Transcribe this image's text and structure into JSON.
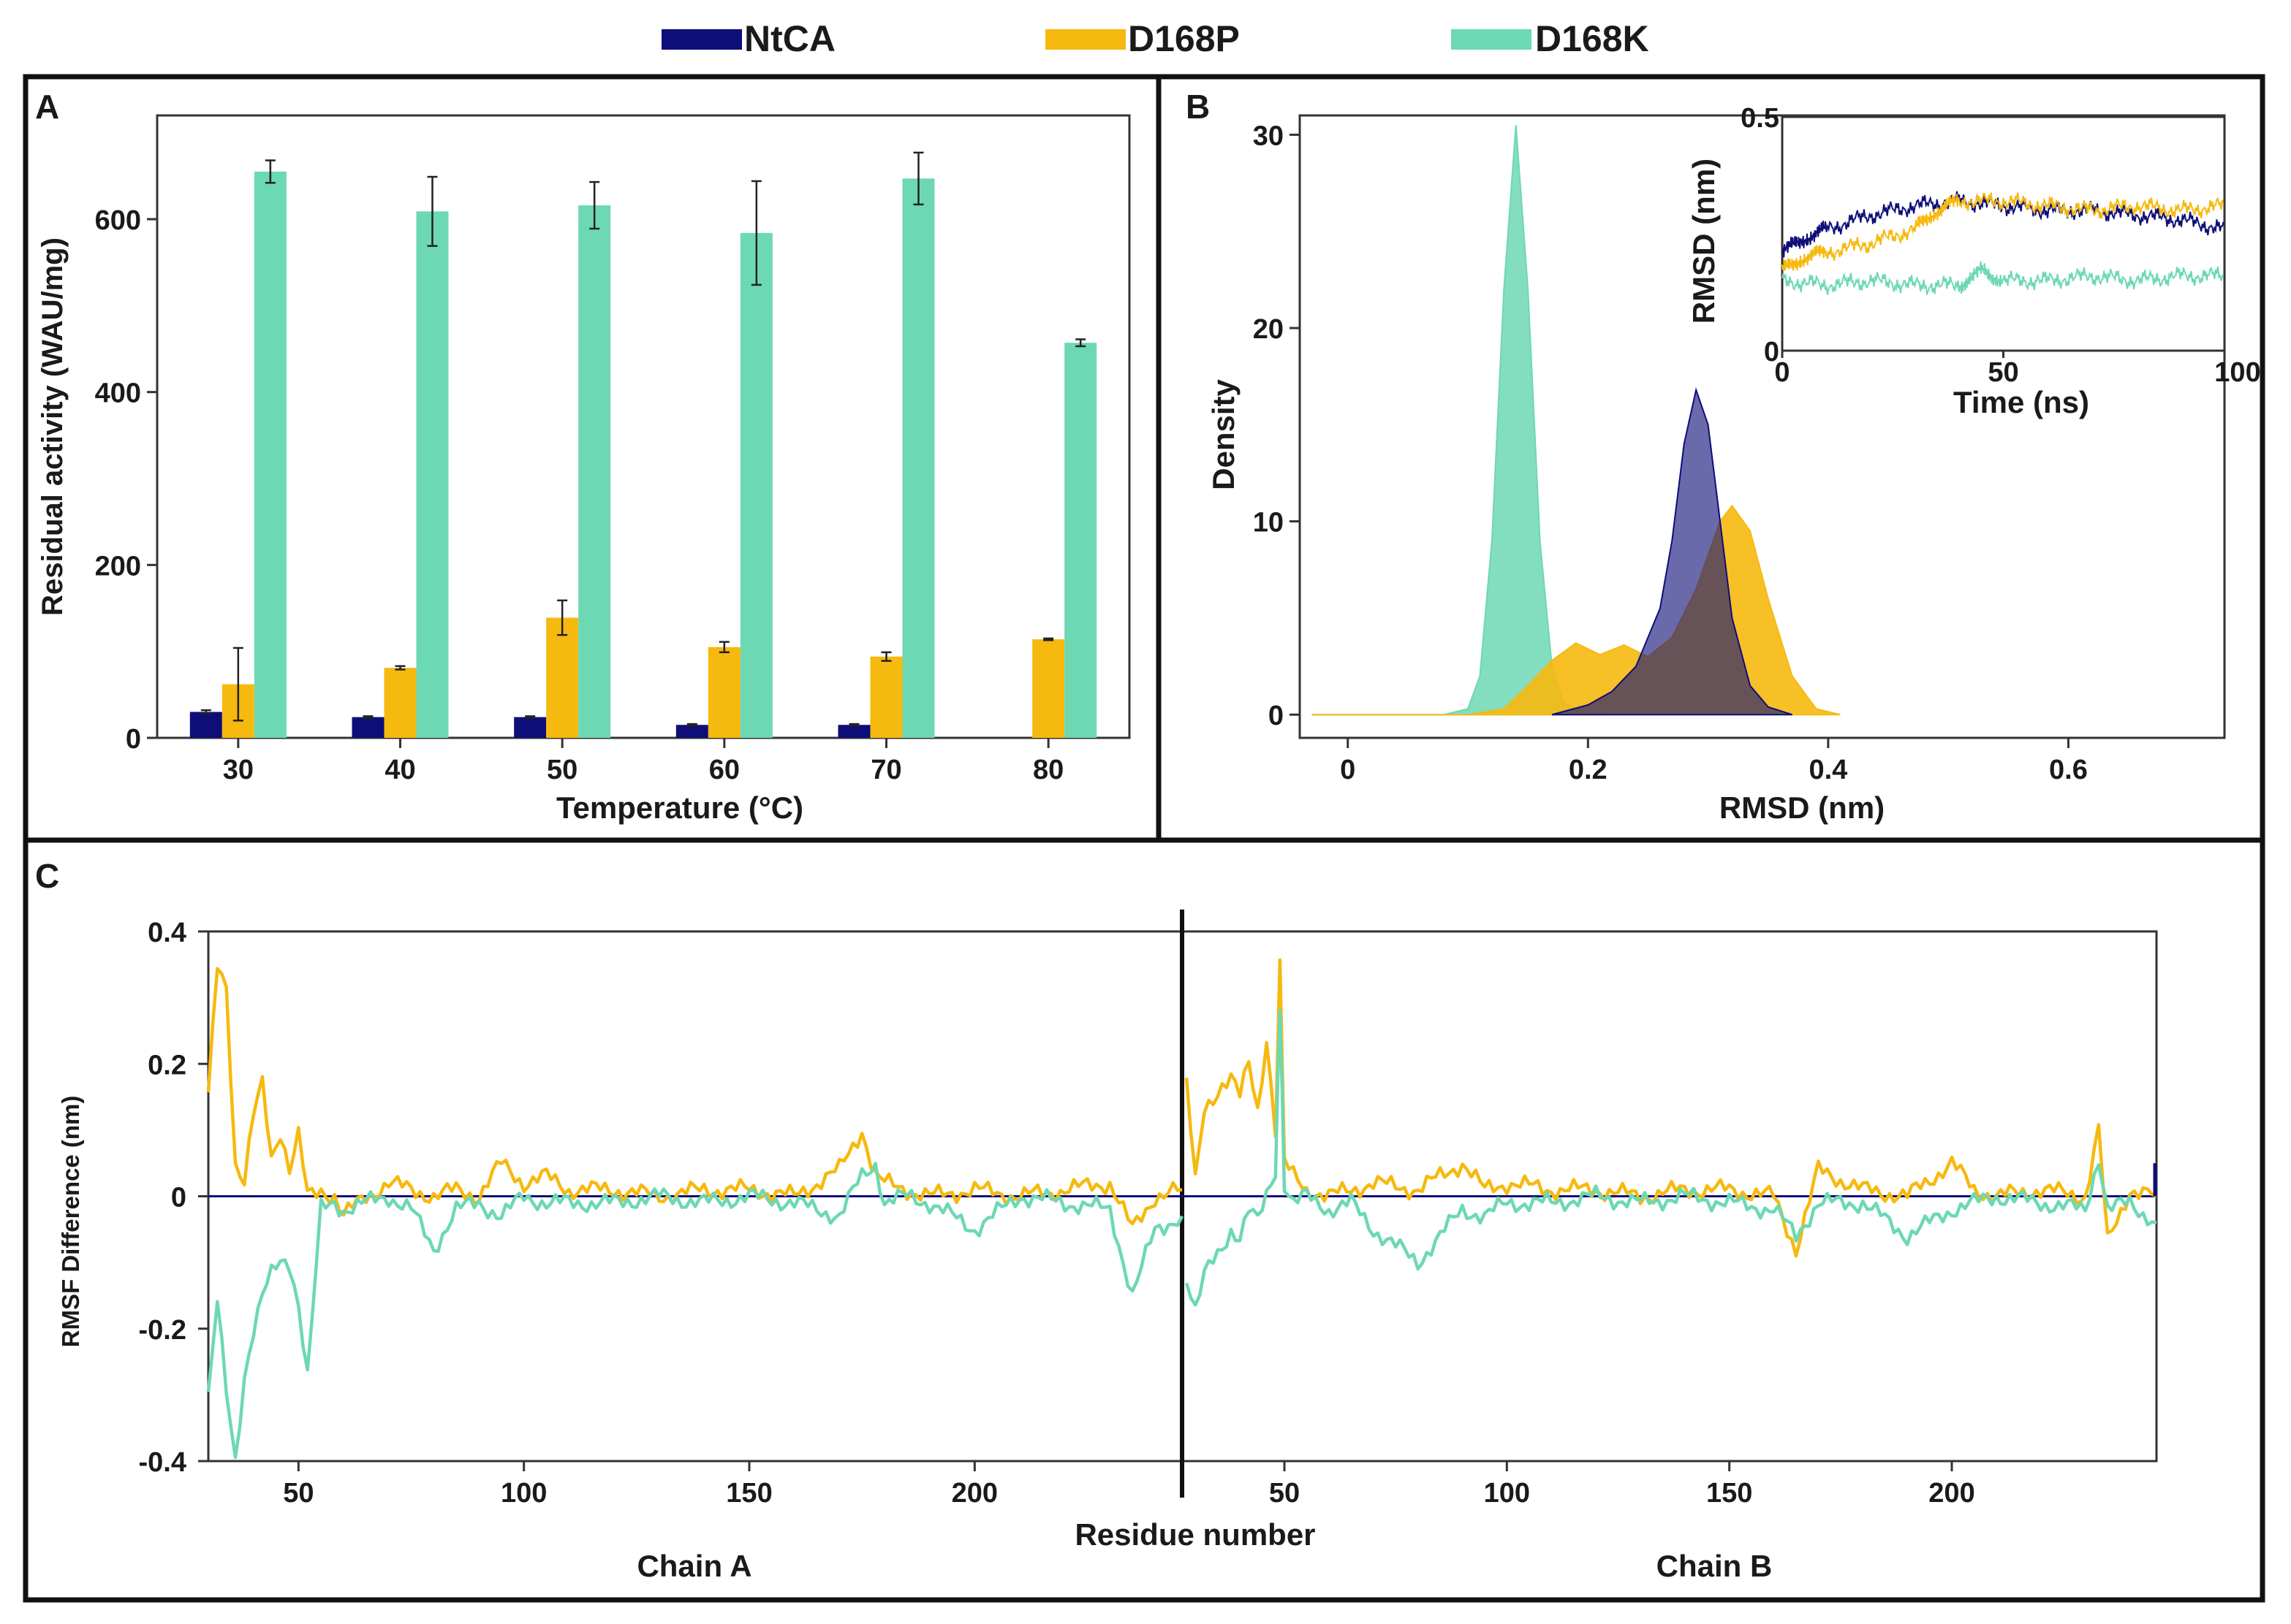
{
  "colors": {
    "NtCA": "#0e0e78",
    "D168P": "#f6b90f",
    "D168K": "#6dd8b4",
    "frame": "#111111",
    "zero_line": "#0e0e78"
  },
  "legend": [
    {
      "name": "NtCA",
      "color_key": "NtCA"
    },
    {
      "name": "D168P",
      "color_key": "D168P"
    },
    {
      "name": "D168K",
      "color_key": "D168K"
    }
  ],
  "chart_data": [
    {
      "panel": "A",
      "type": "bar",
      "xlabel": "Temperature (°C)",
      "ylabel": "Residual activity (WAU/mg)",
      "categories": [
        "30",
        "40",
        "50",
        "60",
        "70",
        "80"
      ],
      "ylim": [
        0,
        720
      ],
      "yticks": [
        0,
        200,
        400,
        600
      ],
      "series": [
        {
          "name": "NtCA",
          "values": [
            30,
            24,
            24,
            15,
            15,
            0
          ],
          "errors": [
            2,
            1,
            1,
            1,
            1,
            0
          ]
        },
        {
          "name": "D168P",
          "values": [
            62,
            81,
            139,
            105,
            94,
            114
          ],
          "errors": [
            42,
            2,
            20,
            6,
            5,
            1
          ]
        },
        {
          "name": "D168K",
          "values": [
            655,
            609,
            616,
            584,
            647,
            457
          ],
          "errors": [
            13,
            40,
            27,
            60,
            30,
            4
          ]
        }
      ]
    },
    {
      "panel": "B",
      "type": "area",
      "xlabel": "RMSD (nm)",
      "ylabel": "Density",
      "xlim": [
        -0.04,
        0.73
      ],
      "ylim": [
        -1.2,
        31
      ],
      "xticks": [
        0,
        0.2,
        0.4,
        0.6
      ],
      "yticks": [
        0,
        10,
        20,
        30
      ],
      "series": [
        {
          "name": "D168K",
          "x": [
            -0.03,
            0.08,
            0.1,
            0.11,
            0.12,
            0.13,
            0.14,
            0.15,
            0.16,
            0.17,
            0.18,
            0.2,
            0.22,
            0.25
          ],
          "values": [
            0,
            0,
            0.3,
            2,
            9,
            22,
            30.5,
            22,
            9,
            2.5,
            0.6,
            0.1,
            0,
            0
          ]
        },
        {
          "name": "D168P",
          "x": [
            -0.03,
            0.1,
            0.13,
            0.15,
            0.17,
            0.19,
            0.21,
            0.23,
            0.25,
            0.27,
            0.29,
            0.31,
            0.32,
            0.335,
            0.35,
            0.37,
            0.39,
            0.41
          ],
          "values": [
            0,
            0,
            0.3,
            1.5,
            2.8,
            3.7,
            3.1,
            3.6,
            3,
            4,
            6.5,
            10,
            10.8,
            9.5,
            6,
            2,
            0.3,
            0
          ]
        },
        {
          "name": "NtCA",
          "x": [
            0.17,
            0.2,
            0.22,
            0.24,
            0.26,
            0.27,
            0.28,
            0.29,
            0.3,
            0.31,
            0.32,
            0.335,
            0.35,
            0.37
          ],
          "values": [
            0,
            0.5,
            1.2,
            2.5,
            5.5,
            9,
            14,
            16.8,
            15,
            10,
            5,
            1.5,
            0.4,
            0
          ]
        }
      ],
      "inset": {
        "type": "line",
        "xlabel": "Time (ns)",
        "ylabel": "RMSD (nm)",
        "xlim": [
          0,
          100
        ],
        "ylim": [
          0,
          0.5
        ],
        "xticks": [
          "0",
          "50",
          "100"
        ],
        "yticks": [
          "0",
          "0.5"
        ],
        "series": [
          {
            "name": "NtCA",
            "x": [
              0,
              5,
              10,
              20,
              30,
              40,
              50,
              60,
              70,
              80,
              90,
              100
            ],
            "values": [
              0.21,
              0.24,
              0.26,
              0.29,
              0.31,
              0.32,
              0.31,
              0.3,
              0.3,
              0.29,
              0.28,
              0.26
            ]
          },
          {
            "name": "D168P",
            "x": [
              0,
              5,
              10,
              20,
              30,
              35,
              40,
              50,
              60,
              70,
              80,
              90,
              100
            ],
            "values": [
              0.17,
              0.2,
              0.21,
              0.23,
              0.26,
              0.3,
              0.32,
              0.32,
              0.31,
              0.3,
              0.31,
              0.3,
              0.31
            ]
          },
          {
            "name": "D168K",
            "x": [
              0,
              10,
              20,
              30,
              40,
              45,
              50,
              60,
              70,
              80,
              90,
              100
            ],
            "values": [
              0.15,
              0.14,
              0.15,
              0.14,
              0.14,
              0.17,
              0.15,
              0.15,
              0.16,
              0.15,
              0.16,
              0.16
            ]
          }
        ]
      }
    },
    {
      "panel": "C",
      "type": "line",
      "xlabel": "Residue number",
      "ylabel": "RMSF Difference (nm)",
      "ylim": [
        -0.4,
        0.4
      ],
      "yticks": [
        "0.4",
        "0.2",
        "0",
        "-0.2",
        "-0.4"
      ],
      "chains": [
        {
          "label": "Chain A",
          "xlim": [
            30,
            246
          ],
          "xticks": [
            50,
            100,
            150,
            200
          ],
          "series": [
            {
              "name": "D168P",
              "x": [
                30,
                32,
                34,
                36,
                38,
                40,
                42,
                44,
                46,
                48,
                50,
                52,
                55,
                58,
                60,
                65,
                70,
                75,
                80,
                85,
                90,
                95,
                100,
                105,
                110,
                120,
                130,
                140,
                150,
                160,
                170,
                175,
                178,
                180,
                185,
                190,
                200,
                210,
                220,
                230,
                235,
                240,
                246
              ],
              "values": [
                0.15,
                0.35,
                0.32,
                0.05,
                0.02,
                0.12,
                0.17,
                0.06,
                0.1,
                0.04,
                0.09,
                0.0,
                0.01,
                0.0,
                -0.03,
                0.0,
                0.02,
                0.01,
                0.0,
                0.01,
                0.0,
                0.05,
                0.02,
                0.03,
                0.01,
                0.01,
                0.0,
                0.01,
                0.01,
                0.0,
                0.04,
                0.1,
                0.03,
                0.02,
                0.01,
                0.0,
                0.01,
                0.0,
                0.01,
                0.02,
                -0.05,
                0.0,
                0.01
              ]
            },
            {
              "name": "D168K",
              "x": [
                30,
                32,
                34,
                36,
                38,
                40,
                42,
                44,
                46,
                48,
                50,
                52,
                55,
                58,
                60,
                65,
                70,
                75,
                80,
                85,
                90,
                95,
                100,
                105,
                110,
                120,
                130,
                140,
                150,
                160,
                170,
                175,
                178,
                180,
                185,
                190,
                200,
                210,
                220,
                230,
                235,
                240,
                246
              ],
              "values": [
                -0.3,
                -0.16,
                -0.3,
                -0.4,
                -0.27,
                -0.2,
                -0.15,
                -0.12,
                -0.1,
                -0.1,
                -0.16,
                -0.27,
                -0.02,
                -0.01,
                -0.02,
                -0.01,
                0.0,
                -0.02,
                -0.08,
                -0.02,
                -0.01,
                -0.03,
                0.0,
                -0.01,
                -0.01,
                -0.01,
                0.0,
                -0.01,
                0.0,
                -0.01,
                -0.03,
                0.03,
                0.05,
                -0.01,
                0.0,
                -0.01,
                -0.05,
                0.0,
                -0.01,
                -0.02,
                -0.15,
                -0.05,
                -0.03
              ]
            }
          ]
        },
        {
          "label": "Chain B",
          "xlim": [
            27,
            246
          ],
          "xticks": [
            50,
            100,
            150,
            200
          ],
          "series": [
            {
              "name": "D168P",
              "x": [
                28,
                30,
                32,
                34,
                36,
                38,
                40,
                42,
                44,
                46,
                48,
                49,
                50,
                52,
                55,
                60,
                65,
                70,
                80,
                90,
                95,
                100,
                110,
                120,
                130,
                140,
                150,
                160,
                165,
                170,
                180,
                190,
                200,
                205,
                210,
                220,
                230,
                233,
                235,
                240,
                246
              ],
              "values": [
                0.17,
                0.02,
                0.13,
                0.15,
                0.17,
                0.18,
                0.15,
                0.2,
                0.13,
                0.24,
                0.1,
                0.35,
                0.05,
                0.03,
                0.01,
                0.0,
                0.01,
                0.02,
                0.01,
                0.05,
                0.01,
                0.02,
                0.01,
                0.01,
                0.0,
                0.01,
                0.01,
                0.0,
                -0.08,
                0.04,
                0.01,
                0.0,
                0.05,
                0.01,
                0.0,
                0.01,
                0.0,
                0.1,
                -0.07,
                0.01,
                0.0
              ]
            },
            {
              "name": "D168K",
              "x": [
                28,
                30,
                32,
                34,
                36,
                38,
                40,
                42,
                44,
                46,
                48,
                49,
                50,
                52,
                55,
                60,
                65,
                70,
                80,
                90,
                95,
                100,
                110,
                120,
                130,
                140,
                150,
                160,
                165,
                170,
                180,
                190,
                200,
                205,
                210,
                220,
                230,
                233,
                235,
                240,
                246
              ],
              "values": [
                -0.12,
                -0.17,
                -0.12,
                -0.1,
                -0.08,
                -0.05,
                -0.06,
                -0.02,
                -0.04,
                0.0,
                0.04,
                0.28,
                0.02,
                -0.01,
                0.0,
                -0.02,
                -0.01,
                -0.05,
                -0.1,
                -0.02,
                -0.03,
                -0.01,
                -0.01,
                0.0,
                -0.01,
                0.0,
                -0.01,
                -0.02,
                -0.06,
                -0.01,
                -0.01,
                -0.06,
                -0.02,
                -0.01,
                0.0,
                -0.01,
                -0.02,
                0.06,
                -0.02,
                -0.01,
                -0.04
              ]
            },
            {
              "name": "NtCA",
              "x": [
                27,
                246
              ],
              "values": [
                0,
                0
              ]
            }
          ]
        }
      ]
    }
  ],
  "panels": {
    "A": {
      "letter": "A"
    },
    "B": {
      "letter": "B"
    },
    "C": {
      "letter": "C"
    }
  }
}
